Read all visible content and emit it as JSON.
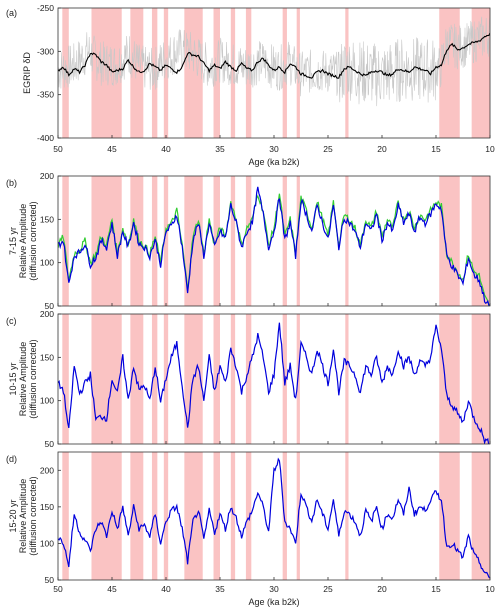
{
  "chart_data": [
    {
      "type": "line",
      "panel_label": "(a)",
      "ylabel": "EGRIP δD",
      "xlabel": "Age (ka b2k)",
      "xlim": [
        50,
        10
      ],
      "ylim": [
        -400,
        -250
      ],
      "yticks": [
        -400,
        -350,
        -300,
        -250
      ],
      "xticks": [
        50,
        45,
        40,
        35,
        30,
        25,
        20,
        15,
        10
      ],
      "series": [
        {
          "color": "#c8c8c8",
          "kind": "raw-noisy",
          "values_note_free": true,
          "x": [
            50,
            48.5,
            47.2,
            46,
            44.6,
            43.4,
            42.4,
            41.2,
            40.2,
            38.8,
            37.6,
            36,
            35,
            33.6,
            32.4,
            31.2,
            29.6,
            28.6,
            27.6,
            26,
            24,
            23.2,
            22,
            20,
            18,
            16,
            14.6,
            14,
            13,
            12,
            11,
            10
          ],
          "y": [
            -322,
            -316,
            -300,
            -314,
            -315,
            -302,
            -318,
            -322,
            -310,
            -298,
            -302,
            -318,
            -310,
            -316,
            -318,
            -312,
            -320,
            -312,
            -326,
            -322,
            -326,
            -318,
            -324,
            -328,
            -320,
            -322,
            -320,
            -290,
            -295,
            -292,
            -285,
            -280
          ]
        },
        {
          "color": "#000000",
          "kind": "smoothed",
          "x": [
            50,
            49.5,
            49,
            48.5,
            48,
            47.5,
            47,
            46.5,
            46,
            45.5,
            45,
            44.5,
            44,
            43.5,
            43,
            42.5,
            42,
            41.5,
            41,
            40.5,
            40,
            39.5,
            39,
            38.5,
            38,
            37.5,
            37,
            36.5,
            36,
            35.5,
            35,
            34.5,
            34,
            33.5,
            33,
            32.5,
            32,
            31.5,
            31,
            30.5,
            30,
            29.5,
            29,
            28.5,
            28,
            27.5,
            27,
            26.5,
            26,
            25.5,
            25,
            24.5,
            24,
            23.5,
            23,
            22.5,
            22,
            21.5,
            21,
            20.5,
            20,
            19.5,
            19,
            18.5,
            18,
            17.5,
            17,
            16.5,
            16,
            15.5,
            15,
            14.5,
            14,
            13.5,
            13,
            12.5,
            12,
            11.5,
            11,
            10.5,
            10
          ],
          "y": [
            -322,
            -318,
            -327,
            -320,
            -324,
            -316,
            -302,
            -304,
            -312,
            -316,
            -324,
            -322,
            -320,
            -310,
            -318,
            -324,
            -322,
            -314,
            -318,
            -322,
            -316,
            -320,
            -324,
            -318,
            -302,
            -304,
            -306,
            -314,
            -322,
            -316,
            -320,
            -312,
            -318,
            -322,
            -314,
            -320,
            -322,
            -312,
            -308,
            -316,
            -322,
            -318,
            -324,
            -314,
            -318,
            -326,
            -328,
            -330,
            -324,
            -322,
            -326,
            -328,
            -330,
            -320,
            -318,
            -322,
            -326,
            -328,
            -324,
            -322,
            -324,
            -328,
            -326,
            -320,
            -322,
            -324,
            -318,
            -320,
            -322,
            -326,
            -318,
            -316,
            -298,
            -292,
            -298,
            -296,
            -292,
            -290,
            -288,
            -283,
            -280
          ]
        }
      ]
    },
    {
      "type": "line",
      "panel_label": "(b)",
      "ylabel": "7-15 yr\nRelative Amplitude\n(diffusion corrected)",
      "xlabel": "",
      "xlim": [
        50,
        10
      ],
      "ylim": [
        50,
        200
      ],
      "yticks": [
        50,
        100,
        150,
        200
      ],
      "xticks": [
        50,
        45,
        40,
        35,
        30,
        25,
        20,
        15,
        10
      ],
      "series": [
        {
          "color": "#33cc33",
          "kind": "green",
          "x": [
            50,
            49.5,
            49,
            48.5,
            48,
            47.5,
            47,
            46.5,
            46,
            45.5,
            45,
            44.5,
            44,
            43.5,
            43,
            42.5,
            42,
            41.5,
            41,
            40.5,
            40,
            39.5,
            39,
            38.5,
            38,
            37.5,
            37,
            36.5,
            36,
            35.5,
            35,
            34.5,
            34,
            33.5,
            33,
            32.5,
            32,
            31.5,
            31,
            30.5,
            30,
            29.5,
            29,
            28.5,
            28,
            27.5,
            27,
            26.5,
            26,
            25.5,
            25,
            24.5,
            24,
            23.5,
            23,
            22.5,
            22,
            21.5,
            21,
            20.5,
            20,
            19.5,
            19,
            18.5,
            18,
            17.5,
            17,
            16.5,
            16,
            15.5,
            15,
            14.5,
            14,
            13.5,
            13,
            12.5,
            12,
            11.5,
            11,
            10.5,
            10
          ],
          "y": [
            120,
            130,
            80,
            110,
            115,
            125,
            100,
            110,
            130,
            120,
            150,
            110,
            140,
            120,
            150,
            125,
            120,
            110,
            130,
            100,
            140,
            145,
            160,
            120,
            70,
            130,
            150,
            110,
            150,
            120,
            140,
            130,
            170,
            150,
            120,
            140,
            150,
            180,
            160,
            120,
            140,
            180,
            130,
            150,
            110,
            175,
            160,
            140,
            170,
            150,
            130,
            170,
            120,
            155,
            150,
            140,
            120,
            150,
            140,
            160,
            130,
            150,
            140,
            170,
            150,
            160,
            140,
            155,
            150,
            160,
            170,
            165,
            110,
            100,
            90,
            80,
            110,
            90,
            85,
            60,
            50
          ]
        },
        {
          "color": "#0000dd",
          "kind": "blue",
          "x": [
            50,
            49.5,
            49,
            48.5,
            48,
            47.5,
            47,
            46.5,
            46,
            45.5,
            45,
            44.5,
            44,
            43.5,
            43,
            42.5,
            42,
            41.5,
            41,
            40.5,
            40,
            39.5,
            39,
            38.5,
            38,
            37.5,
            37,
            36.5,
            36,
            35.5,
            35,
            34.5,
            34,
            33.5,
            33,
            32.5,
            32,
            31.5,
            31,
            30.5,
            30,
            29.5,
            29,
            28.5,
            28,
            27.5,
            27,
            26.5,
            26,
            25.5,
            25,
            24.5,
            24,
            23.5,
            23,
            22.5,
            22,
            21.5,
            21,
            20.5,
            20,
            19.5,
            19,
            18.5,
            18,
            17.5,
            17,
            16.5,
            16,
            15.5,
            15,
            14.5,
            14,
            13.5,
            13,
            12.5,
            12,
            11.5,
            11,
            10.5,
            10
          ],
          "y": [
            120,
            125,
            75,
            108,
            112,
            122,
            98,
            106,
            125,
            118,
            145,
            108,
            136,
            118,
            146,
            122,
            118,
            108,
            126,
            98,
            136,
            142,
            156,
            118,
            65,
            126,
            146,
            108,
            146,
            118,
            136,
            128,
            166,
            146,
            118,
            136,
            146,
            185,
            156,
            118,
            136,
            176,
            126,
            146,
            108,
            172,
            156,
            136,
            166,
            146,
            126,
            166,
            118,
            152,
            146,
            136,
            118,
            146,
            136,
            156,
            126,
            146,
            136,
            166,
            146,
            156,
            136,
            152,
            146,
            156,
            168,
            162,
            108,
            96,
            86,
            76,
            106,
            86,
            80,
            58,
            48
          ]
        }
      ]
    },
    {
      "type": "line",
      "panel_label": "(c)",
      "ylabel": "10-15 yr\nRelative Amplitude\n(diffusion corrected)",
      "xlabel": "",
      "xlim": [
        50,
        10
      ],
      "ylim": [
        50,
        200
      ],
      "yticks": [
        50,
        100,
        150,
        200
      ],
      "xticks": [
        50,
        45,
        40,
        35,
        30,
        25,
        20,
        15,
        10
      ],
      "series": [
        {
          "color": "#0000dd",
          "kind": "blue",
          "x": [
            50,
            49.5,
            49,
            48.5,
            48,
            47.5,
            47,
            46.5,
            46,
            45.5,
            45,
            44.5,
            44,
            43.5,
            43,
            42.5,
            42,
            41.5,
            41,
            40.5,
            40,
            39.5,
            39,
            38.5,
            38,
            37.5,
            37,
            36.5,
            36,
            35.5,
            35,
            34.5,
            34,
            33.5,
            33,
            32.5,
            32,
            31.5,
            31,
            30.5,
            30,
            29.5,
            29,
            28.5,
            28,
            27.5,
            27,
            26.5,
            26,
            25.5,
            25,
            24.5,
            24,
            23.5,
            23,
            22.5,
            22,
            21.5,
            21,
            20.5,
            20,
            19.5,
            19,
            18.5,
            18,
            17.5,
            17,
            16.5,
            16,
            15.5,
            15,
            14.5,
            14,
            13.5,
            13,
            12.5,
            12,
            11.5,
            11,
            10.5,
            10
          ],
          "y": [
            120,
            112,
            65,
            140,
            108,
            120,
            130,
            78,
            82,
            80,
            125,
            108,
            150,
            100,
            140,
            112,
            118,
            100,
            140,
            98,
            126,
            150,
            166,
            118,
            68,
            126,
            140,
            100,
            150,
            110,
            140,
            120,
            160,
            140,
            110,
            130,
            150,
            175,
            150,
            110,
            130,
            190,
            120,
            140,
            100,
            165,
            150,
            130,
            160,
            140,
            120,
            160,
            110,
            145,
            140,
            130,
            110,
            140,
            130,
            150,
            120,
            140,
            130,
            160,
            140,
            150,
            130,
            145,
            140,
            150,
            185,
            160,
            105,
            95,
            85,
            75,
            100,
            80,
            70,
            55,
            50
          ]
        }
      ]
    },
    {
      "type": "line",
      "panel_label": "(d)",
      "ylabel": "15-20 yr\nRelative Amplitude\n(diffusion corrected)",
      "xlabel": "Age (ka b2k)",
      "xlim": [
        50,
        10
      ],
      "ylim": [
        50,
        225
      ],
      "yticks": [
        50,
        100,
        150,
        200
      ],
      "xticks": [
        50,
        45,
        40,
        35,
        30,
        25,
        20,
        15,
        10
      ],
      "series": [
        {
          "color": "#0000dd",
          "kind": "blue",
          "x": [
            50,
            49.5,
            49,
            48.5,
            48,
            47.5,
            47,
            46.5,
            46,
            45.5,
            45,
            44.5,
            44,
            43.5,
            43,
            42.5,
            42,
            41.5,
            41,
            40.5,
            40,
            39.5,
            39,
            38.5,
            38,
            37.5,
            37,
            36.5,
            36,
            35.5,
            35,
            34.5,
            34,
            33.5,
            33,
            32.5,
            32,
            31.5,
            31,
            30.5,
            30,
            29.5,
            29,
            28.5,
            28,
            27.5,
            27,
            26.5,
            26,
            25.5,
            25,
            24.5,
            24,
            23.5,
            23,
            22.5,
            22,
            21.5,
            21,
            20.5,
            20,
            19.5,
            19,
            18.5,
            18,
            17.5,
            17,
            16.5,
            16,
            15.5,
            15,
            14.5,
            14,
            13.5,
            13,
            12.5,
            12,
            11.5,
            11,
            10.5,
            10
          ],
          "y": [
            110,
            100,
            70,
            140,
            115,
            105,
            90,
            120,
            130,
            110,
            145,
            120,
            150,
            110,
            150,
            120,
            125,
            110,
            140,
            100,
            130,
            145,
            150,
            120,
            75,
            130,
            145,
            105,
            145,
            115,
            140,
            120,
            150,
            135,
            110,
            130,
            145,
            170,
            150,
            115,
            200,
            215,
            130,
            120,
            100,
            170,
            150,
            130,
            160,
            140,
            120,
            160,
            110,
            145,
            140,
            130,
            110,
            145,
            130,
            150,
            120,
            140,
            135,
            160,
            140,
            175,
            140,
            150,
            145,
            160,
            170,
            160,
            95,
            100,
            90,
            80,
            110,
            85,
            75,
            60,
            52
          ]
        }
      ]
    }
  ],
  "shading": {
    "color": "#f9b9b9",
    "bands": [
      [
        49.6,
        49.0
      ],
      [
        46.9,
        44.1
      ],
      [
        43.3,
        42.1
      ],
      [
        41.3,
        40.8
      ],
      [
        40.2,
        39.8
      ],
      [
        38.3,
        36.6
      ],
      [
        35.6,
        35.0
      ],
      [
        34.0,
        33.6
      ],
      [
        32.6,
        32.1
      ],
      [
        29.2,
        28.8
      ],
      [
        27.9,
        27.6
      ],
      [
        23.4,
        23.1
      ],
      [
        14.7,
        12.8
      ],
      [
        11.7,
        10.0
      ]
    ]
  }
}
